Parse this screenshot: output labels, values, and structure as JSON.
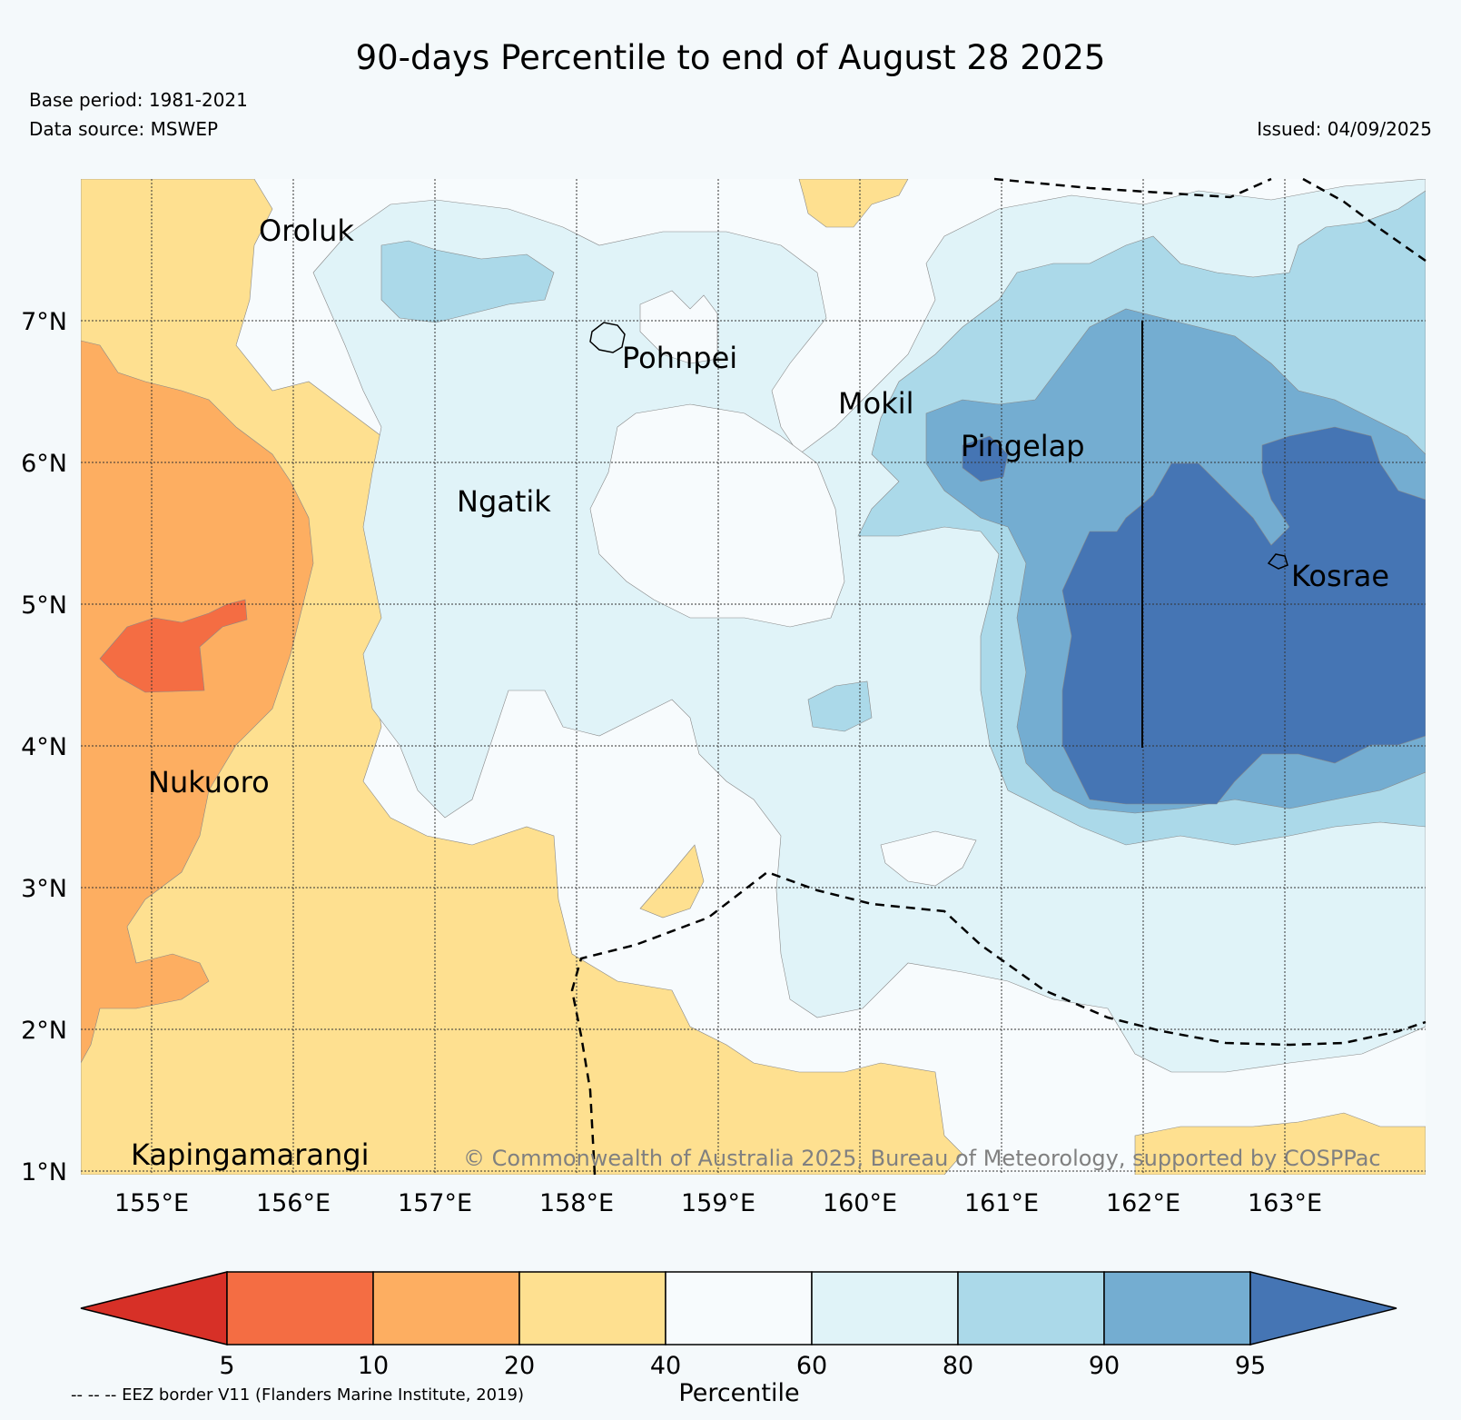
{
  "header": {
    "title": "90-days Percentile to end of August 28 2025",
    "base_period": "Base period: 1981-2021",
    "data_source": "Data source: MSWEP",
    "issued": "Issued: 04/09/2025"
  },
  "map": {
    "lon_range": [
      154.5,
      164.0
    ],
    "lat_range": [
      1.0,
      8.0
    ],
    "lon_ticks": [
      "155°E",
      "156°E",
      "157°E",
      "158°E",
      "159°E",
      "160°E",
      "161°E",
      "162°E",
      "163°E"
    ],
    "lat_ticks": [
      "1°N",
      "2°N",
      "3°N",
      "4°N",
      "5°N",
      "6°N",
      "7°N"
    ],
    "places": [
      {
        "name": "Oroluk",
        "lon": 155.75,
        "lat": 7.6
      },
      {
        "name": "Pohnpei",
        "lon": 158.3,
        "lat": 6.8
      },
      {
        "name": "Mokil",
        "lon": 159.8,
        "lat": 6.7
      },
      {
        "name": "Pingelap",
        "lon": 160.7,
        "lat": 6.2
      },
      {
        "name": "Ngatik",
        "lon": 157.15,
        "lat": 5.8
      },
      {
        "name": "Kosrae",
        "lon": 162.97,
        "lat": 5.3
      },
      {
        "name": "Nukuoro",
        "lon": 154.97,
        "lat": 3.85
      },
      {
        "name": "Kapingamarangi",
        "lon": 154.8,
        "lat": 1.1
      }
    ],
    "copyright": "© Commonwealth of Australia 2025, Bureau of Meteorology, supported by COSPPac",
    "grid": "dotted",
    "border_style": "dashed"
  },
  "colorbar": {
    "label": "Percentile",
    "ticks": [
      "5",
      "10",
      "20",
      "40",
      "60",
      "80",
      "90",
      "95"
    ],
    "colors": [
      "#d73027",
      "#f46d43",
      "#fdae61",
      "#fee090",
      "#f7fbfd",
      "#e0f3f8",
      "#abd9e9",
      "#74add1",
      "#4575b4"
    ],
    "extend": "both"
  },
  "footnote": "-- -- -- EEZ border V11 (Flanders Marine Institute, 2019)"
}
